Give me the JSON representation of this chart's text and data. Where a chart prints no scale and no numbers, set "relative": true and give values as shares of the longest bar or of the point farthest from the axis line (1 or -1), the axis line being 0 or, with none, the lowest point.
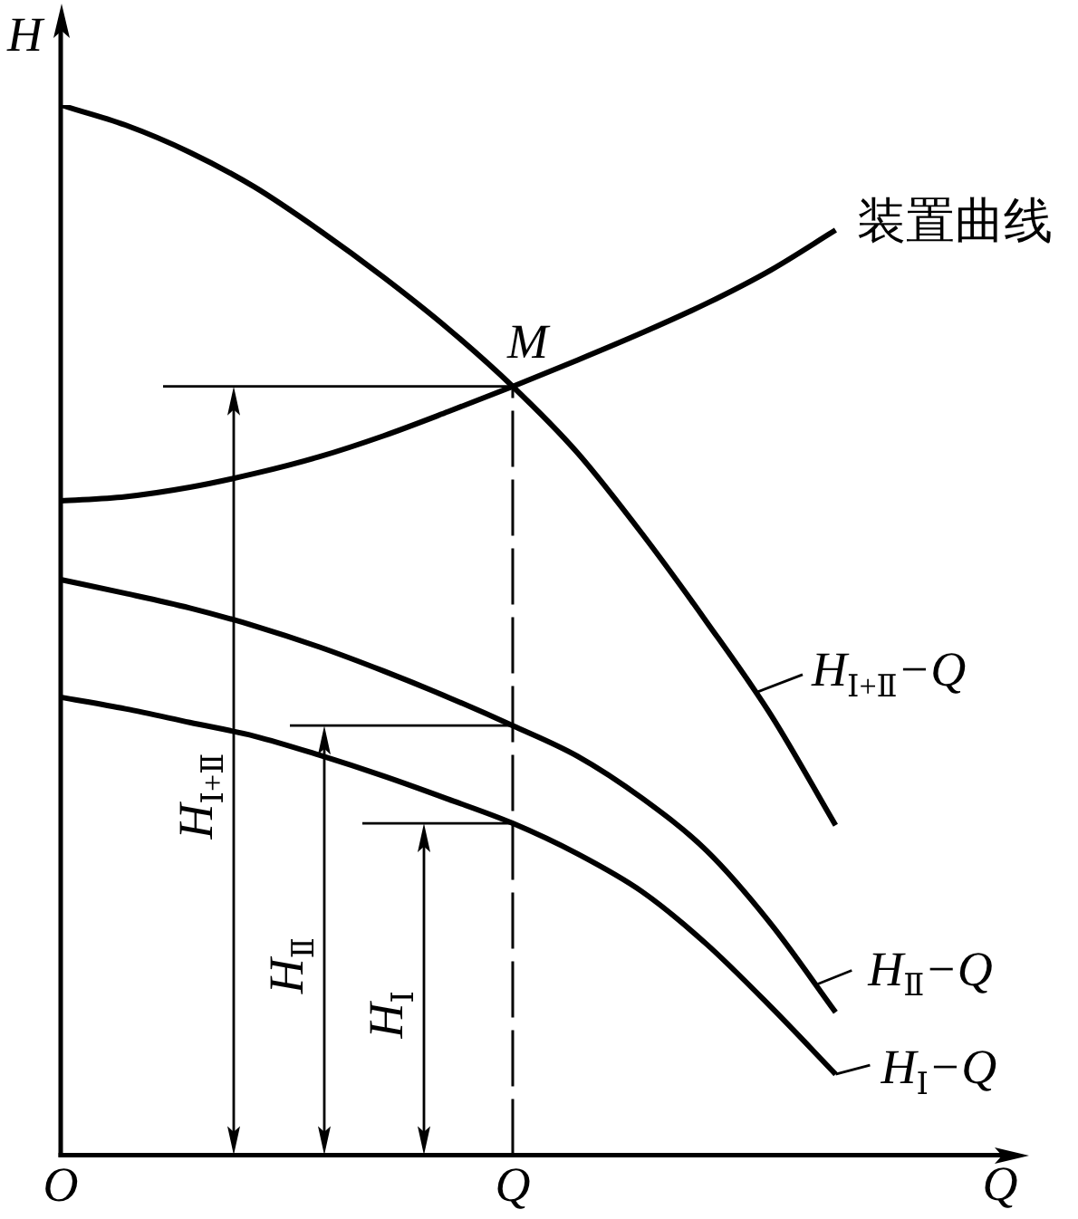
{
  "chart_data": {
    "type": "line",
    "relative": true,
    "xlabel": "Q",
    "ylabel": "H",
    "legend": "right",
    "categories": [
      "O",
      null,
      null,
      null,
      null,
      null,
      null,
      "Q",
      null,
      null,
      null,
      null,
      null
    ],
    "series": [
      {
        "name": "H$_{Ⅰ+Ⅱ}$−Q",
        "color": "#000000",
        "values": [
          1,
          0.981,
          0.955,
          0.922,
          0.881,
          0.836,
          0.787,
          0.732,
          0.669,
          0.592,
          0.508,
          0.419,
          0.314
        ]
      },
      {
        "name": "装置曲线",
        "color": "#000000",
        "values": [
          0.623,
          0.627,
          0.636,
          0.649,
          0.665,
          0.685,
          0.708,
          0.732,
          0.757,
          0.783,
          0.811,
          0.843,
          0.881
        ]
      },
      {
        "name": "H$_{Ⅱ}$−Q",
        "color": "#000000",
        "values": [
          0.548,
          0.535,
          0.521,
          0.504,
          0.484,
          0.461,
          0.436,
          0.409,
          0.38,
          0.34,
          0.29,
          0.22,
          0.136
        ]
      },
      {
        "name": "H$_{Ⅰ}$−Q",
        "color": "#000000",
        "values": [
          0.436,
          0.425,
          0.412,
          0.399,
          0.381,
          0.361,
          0.339,
          0.316,
          0.287,
          0.251,
          0.201,
          0.141,
          0.077
        ]
      }
    ],
    "ref_lines": [
      {
        "axis": "x",
        "value": "Q",
        "line_style": "dashed"
      },
      {
        "axis": "y",
        "value": 0.732
      },
      {
        "axis": "y",
        "value": 0.409
      },
      {
        "axis": "y",
        "value": 0.316
      }
    ],
    "annotations": [
      "H$_{Ⅰ+Ⅱ}$",
      "H$_{Ⅱ}$",
      "H$_{Ⅰ}$",
      {
        "text": "M",
        "x": "Q",
        "y": 0.732
      }
    ]
  }
}
